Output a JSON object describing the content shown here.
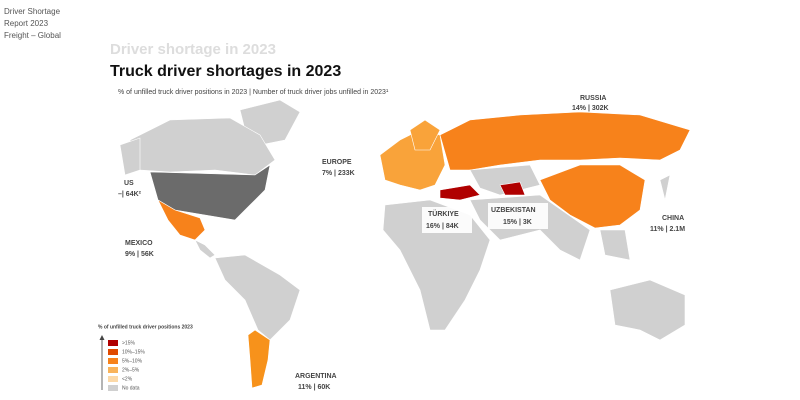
{
  "header": {
    "lines": [
      "Driver Shortage",
      "Report 2023",
      "Freight – Global"
    ]
  },
  "faded_title": "Driver shortage in 2023",
  "title": "Truck driver shortages in 2023",
  "subtitle": "% of unfilled truck driver positions in 2023 | Number of truck driver jobs unfilled in 2023¹",
  "regions": [
    {
      "name": "RUSSIA",
      "stat": "14% | 302K"
    },
    {
      "name": "EUROPE",
      "stat": "7% | 233K"
    },
    {
      "name": "US",
      "stat": "–| 64K²"
    },
    {
      "name": "MEXICO",
      "stat": "9% | 56K"
    },
    {
      "name": "TÜRKIYE",
      "stat": "16% | 84K"
    },
    {
      "name": "UZBEKISTAN",
      "stat": "15% | 3K"
    },
    {
      "name": "CHINA",
      "stat": "11% | 2.1M"
    },
    {
      "name": "ARGENTINA",
      "stat": "11% | 60K"
    }
  ],
  "legend": {
    "title": "% of unfilled truck driver positions 2023",
    "items": [
      {
        "label": ">15%",
        "color": "#b00000"
      },
      {
        "label": "10%–15%",
        "color": "#e04a00"
      },
      {
        "label": "5%–10%",
        "color": "#f7821b"
      },
      {
        "label": "2%–5%",
        "color": "#f9b35a"
      },
      {
        "label": "<2%",
        "color": "#fcd9a8"
      },
      {
        "label": "No data",
        "color": "#d0d0d0"
      }
    ]
  }
}
